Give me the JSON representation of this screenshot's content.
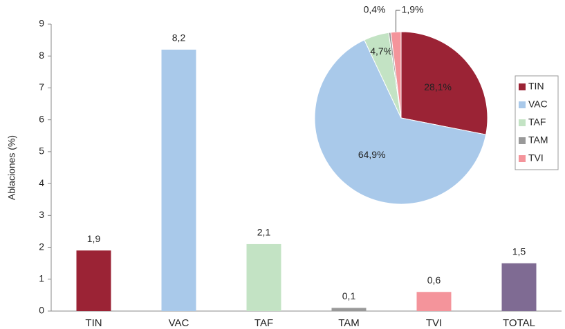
{
  "chart_data": [
    {
      "type": "bar",
      "y_label": "Ablaciones (%)",
      "categories": [
        "TIN",
        "VAC",
        "TAF",
        "TAM",
        "TVI",
        "TOTAL"
      ],
      "values": [
        1.9,
        8.2,
        2.1,
        0.1,
        0.6,
        1.5
      ],
      "value_labels": [
        "1,9",
        "8,2",
        "2,1",
        "0,1",
        "0,6",
        "1,5"
      ],
      "colors": [
        "#9b2335",
        "#a9c9ea",
        "#c3e3c4",
        "#999999",
        "#f4949b",
        "#7f6b93"
      ],
      "ylim": [
        0,
        9
      ],
      "yticks": [
        0,
        1,
        2,
        3,
        4,
        5,
        6,
        7,
        8,
        9
      ]
    },
    {
      "type": "pie",
      "categories": [
        "TIN",
        "VAC",
        "TAF",
        "TAM",
        "TVI"
      ],
      "values": [
        28.1,
        64.9,
        4.7,
        0.4,
        1.9
      ],
      "value_labels": [
        "28,1%",
        "64,9%",
        "4,7%",
        "0,4%",
        "1,9%"
      ],
      "colors": [
        "#9b2335",
        "#a9c9ea",
        "#c3e3c4",
        "#999999",
        "#f4949b"
      ],
      "legend": "right"
    }
  ]
}
